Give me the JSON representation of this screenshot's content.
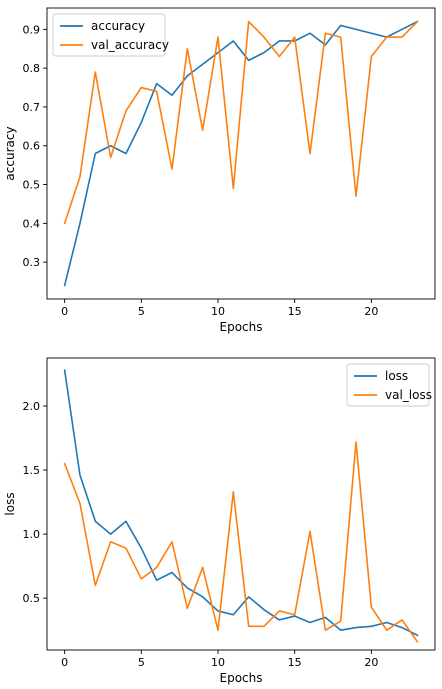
{
  "chart_data": [
    {
      "type": "line",
      "xlabel": "Epochs",
      "ylabel": "accuracy",
      "xlim": [
        -1.15,
        24.15
      ],
      "ylim": [
        0.205,
        0.955
      ],
      "xticks": [
        0,
        5,
        10,
        15,
        20
      ],
      "yticks": [
        0.3,
        0.4,
        0.5,
        0.6,
        0.7,
        0.8,
        0.9
      ],
      "legend": "upper-left",
      "grid": false,
      "x": [
        0,
        1,
        2,
        3,
        4,
        5,
        6,
        7,
        8,
        9,
        10,
        11,
        12,
        13,
        14,
        15,
        16,
        17,
        18,
        19,
        20,
        21,
        22,
        23
      ],
      "series": [
        {
          "name": "accuracy",
          "color": "#1f77b4",
          "values": [
            0.24,
            0.4,
            0.58,
            0.6,
            0.58,
            0.66,
            0.76,
            0.73,
            0.78,
            0.81,
            0.84,
            0.87,
            0.82,
            0.84,
            0.87,
            0.87,
            0.89,
            0.86,
            0.91,
            0.9,
            0.89,
            0.88,
            0.9,
            0.92
          ]
        },
        {
          "name": "val_accuracy",
          "color": "#ff7f0e",
          "values": [
            0.4,
            0.52,
            0.79,
            0.57,
            0.69,
            0.75,
            0.74,
            0.54,
            0.85,
            0.64,
            0.88,
            0.49,
            0.92,
            0.88,
            0.83,
            0.88,
            0.58,
            0.89,
            0.88,
            0.47,
            0.83,
            0.88,
            0.88,
            0.92
          ]
        }
      ]
    },
    {
      "type": "line",
      "xlabel": "Epochs",
      "ylabel": "loss",
      "xlim": [
        -1.15,
        24.15
      ],
      "ylim": [
        0.095,
        2.375
      ],
      "xticks": [
        0,
        5,
        10,
        15,
        20
      ],
      "yticks": [
        0.5,
        1.0,
        1.5,
        2.0
      ],
      "ytick_labels": [
        "0.5",
        "1.0",
        "1.5",
        "2.0"
      ],
      "legend": "upper-right",
      "grid": false,
      "x": [
        0,
        1,
        2,
        3,
        4,
        5,
        6,
        7,
        8,
        9,
        10,
        11,
        12,
        13,
        14,
        15,
        16,
        17,
        18,
        19,
        20,
        21,
        22,
        23
      ],
      "series": [
        {
          "name": "loss",
          "color": "#1f77b4",
          "values": [
            2.28,
            1.46,
            1.1,
            1.0,
            1.1,
            0.89,
            0.64,
            0.7,
            0.58,
            0.51,
            0.4,
            0.37,
            0.51,
            0.41,
            0.33,
            0.36,
            0.31,
            0.35,
            0.25,
            0.27,
            0.28,
            0.31,
            0.27,
            0.21
          ]
        },
        {
          "name": "val_loss",
          "color": "#ff7f0e",
          "values": [
            1.55,
            1.24,
            0.6,
            0.94,
            0.89,
            0.65,
            0.74,
            0.94,
            0.42,
            0.74,
            0.25,
            1.33,
            0.28,
            0.28,
            0.4,
            0.37,
            1.02,
            0.25,
            0.32,
            1.72,
            0.43,
            0.25,
            0.33,
            0.16
          ]
        }
      ]
    }
  ]
}
